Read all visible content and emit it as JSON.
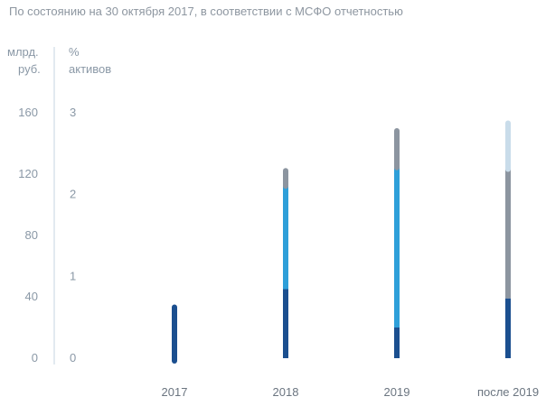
{
  "chart_data": {
    "type": "bar",
    "subtitle": "По состоянию на 30 октября 2017, в соответствии с МСФО отчетностью",
    "left_axis": {
      "label_line1": "млрд.",
      "label_line2": "руб.",
      "ticks": [
        "160",
        "120",
        "80",
        "40",
        "0"
      ],
      "ylim": [
        0,
        160
      ]
    },
    "right_axis": {
      "label_line1": "%",
      "label_line2": "активов",
      "ticks": [
        "3",
        "2",
        "1",
        "0"
      ],
      "ylim": [
        0,
        3
      ]
    },
    "categories": [
      "2017",
      "2018",
      "2019",
      "после 2019"
    ],
    "series": [
      {
        "color": "#1b4f8f",
        "values": [
          35,
          45,
          20,
          39
        ]
      },
      {
        "color": "#2e9fd9",
        "values": [
          0,
          69,
          106,
          0
        ]
      },
      {
        "color": "#8c95a0",
        "values": [
          0,
          10,
          24,
          86
        ]
      },
      {
        "color": "#c9dcea",
        "values": [
          0,
          0,
          0,
          30
        ]
      }
    ]
  }
}
